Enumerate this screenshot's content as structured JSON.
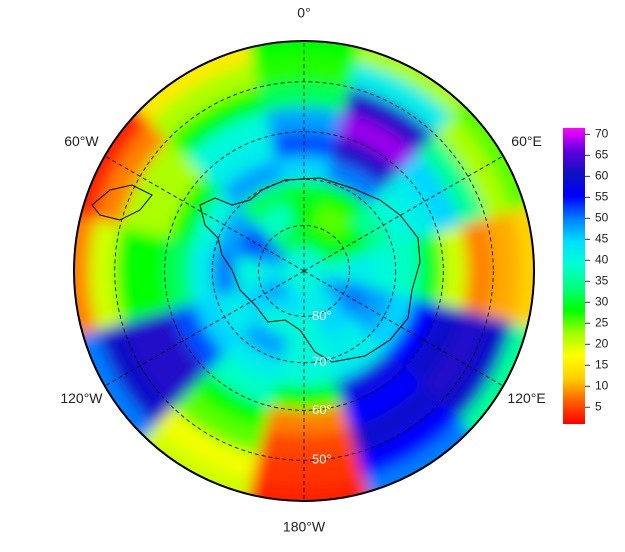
{
  "chart_data": {
    "type": "polar-map",
    "lon_ticks": [
      {
        "value": 0,
        "label": "0°"
      },
      {
        "value": 60,
        "label": "60°E"
      },
      {
        "value": 120,
        "label": "120°E"
      },
      {
        "value": 180,
        "label": "180°W"
      },
      {
        "value": -120,
        "label": "120°W"
      },
      {
        "value": -60,
        "label": "60°W"
      }
    ],
    "lat_ticks": [
      {
        "value": 80,
        "label": "80°"
      },
      {
        "value": 70,
        "label": "70°"
      },
      {
        "value": 60,
        "label": "60°"
      },
      {
        "value": 50,
        "label": "50°"
      }
    ],
    "field": {
      "lat": [
        87.5,
        82.5,
        77.5,
        72.5,
        67.5,
        62.5,
        57.5,
        52.5,
        47.5,
        42.5
      ],
      "lon": [
        0,
        30,
        60,
        90,
        120,
        150,
        180,
        210,
        240,
        270,
        300,
        330
      ],
      "values": [
        [
          40,
          40,
          40,
          40,
          40,
          40,
          40,
          40,
          40,
          40,
          40,
          40
        ],
        [
          30,
          28,
          30,
          40,
          48,
          42,
          42,
          45,
          48,
          42,
          50,
          32
        ],
        [
          28,
          25,
          28,
          42,
          50,
          45,
          40,
          40,
          45,
          40,
          52,
          38
        ],
        [
          30,
          28,
          35,
          40,
          48,
          42,
          40,
          48,
          42,
          50,
          48,
          32
        ],
        [
          45,
          50,
          40,
          38,
          45,
          42,
          40,
          42,
          45,
          42,
          40,
          48
        ],
        [
          52,
          62,
          42,
          30,
          55,
          58,
          28,
          38,
          52,
          32,
          28,
          42
        ],
        [
          48,
          68,
          45,
          20,
          60,
          55,
          8,
          28,
          62,
          28,
          22,
          40
        ],
        [
          32,
          62,
          35,
          8,
          62,
          60,
          5,
          25,
          62,
          28,
          22,
          28
        ],
        [
          27,
          42,
          22,
          10,
          60,
          55,
          4,
          18,
          60,
          20,
          8,
          22
        ],
        [
          28,
          22,
          25,
          12,
          35,
          50,
          3,
          20,
          50,
          8,
          3,
          15
        ]
      ]
    },
    "colorscale": [
      "#ff0000",
      "#ff6000",
      "#ffd000",
      "#ffff00",
      "#a0ff00",
      "#00ff00",
      "#00ff80",
      "#00ffd0",
      "#00e0ff",
      "#0080ff",
      "#0000ff",
      "#1010c0",
      "#6000e0",
      "#ff00ff"
    ],
    "clim": [
      1,
      71.5
    ],
    "colorbar_ticks": [
      5,
      10,
      15,
      20,
      25,
      30,
      35,
      40,
      45,
      50,
      55,
      60,
      65,
      70
    ],
    "grid": true
  }
}
